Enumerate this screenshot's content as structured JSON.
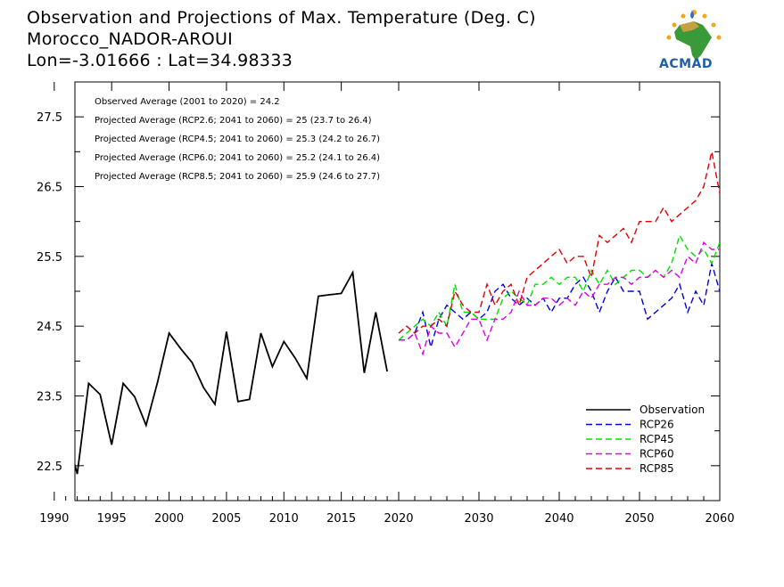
{
  "header": {
    "line1": "Observation and Projections of Max. Temperature (Deg. C)",
    "line2": "Morocco_NADOR-AROUI",
    "line3": "Lon=-3.01666 : Lat=34.98333"
  },
  "logo": {
    "text": "ACMAD",
    "icon": "africa-map-logo-icon"
  },
  "colors": {
    "Observation": "#000000",
    "RCP26": "#0000e0",
    "RCP45": "#00e000",
    "RCP60": "#e000e0",
    "RCP85": "#e00000"
  },
  "annotations": [
    "Observed Average (2001 to 2020) = 24.2",
    "Projected Average (RCP2.6; 2041 to 2060) = 25 (23.7 to 26.4)",
    "Projected Average (RCP4.5; 2041 to 2060) = 25.3 (24.2 to 26.7)",
    "Projected Average (RCP6.0; 2041 to 2060) = 25.2 (24.1 to 26.4)",
    "Projected Average (RCP8.5; 2041 to 2060) = 25.9 (24.6 to 27.7)"
  ],
  "chart_data": [
    {
      "type": "line",
      "title": "",
      "xlabel": "",
      "ylabel": "",
      "xlim": [
        1990,
        2020
      ],
      "ylim": [
        22,
        28
      ],
      "x_ticks": [
        1990,
        1995,
        2000,
        2005,
        2010,
        2015,
        2020
      ],
      "y_ticks": [
        22.5,
        23.5,
        24.5,
        25.5,
        26.5,
        27.5
      ],
      "legend": "none",
      "series": [
        {
          "name": "Observation",
          "x": [
            1989,
            1990,
            1991,
            1992,
            1993,
            1994,
            1995,
            1996,
            1997,
            1998,
            1999,
            2000,
            2001,
            2002,
            2003,
            2004,
            2005,
            2006,
            2007,
            2008,
            2009,
            2010,
            2011,
            2012,
            2013,
            2014,
            2015,
            2016,
            2017,
            2018,
            2019
          ],
          "values": [
            23.45,
            22.38,
            23.0,
            22.38,
            23.68,
            23.52,
            22.8,
            23.68,
            23.49,
            23.08,
            23.7,
            24.4,
            24.18,
            23.98,
            23.62,
            23.38,
            24.42,
            23.42,
            23.45,
            24.4,
            23.92,
            24.28,
            24.04,
            23.75,
            24.93,
            24.95,
            24.97,
            25.27,
            23.83,
            24.7,
            23.85
          ]
        }
      ]
    },
    {
      "type": "line",
      "title": "",
      "xlabel": "",
      "ylabel": "",
      "xlim": [
        2020,
        2060
      ],
      "ylim": [
        22,
        28
      ],
      "x_ticks": [
        2020,
        2030,
        2040,
        2050,
        2060
      ],
      "legend": "bottom-right",
      "series": [
        {
          "name": "Observation",
          "x": [],
          "values": []
        },
        {
          "name": "RCP26",
          "x": [
            2020,
            2021,
            2022,
            2023,
            2024,
            2025,
            2026,
            2027,
            2028,
            2029,
            2030,
            2031,
            2032,
            2033,
            2034,
            2035,
            2036,
            2037,
            2038,
            2039,
            2040,
            2041,
            2042,
            2043,
            2044,
            2045,
            2046,
            2047,
            2048,
            2049,
            2050,
            2051,
            2052,
            2053,
            2054,
            2055,
            2056,
            2057,
            2058,
            2059,
            2060
          ],
          "values": [
            24.3,
            24.3,
            24.4,
            24.7,
            24.2,
            24.6,
            24.8,
            24.7,
            24.6,
            24.7,
            24.6,
            24.7,
            25.0,
            25.1,
            24.9,
            24.8,
            24.9,
            24.8,
            24.9,
            24.7,
            24.9,
            24.9,
            25.1,
            25.2,
            25.0,
            24.7,
            25.0,
            25.2,
            25.0,
            25.0,
            25.0,
            24.6,
            24.7,
            24.8,
            24.9,
            25.1,
            24.7,
            25.0,
            24.8,
            25.4,
            25.0
          ]
        },
        {
          "name": "RCP45",
          "x": [
            2020,
            2021,
            2022,
            2023,
            2024,
            2025,
            2026,
            2027,
            2028,
            2029,
            2030,
            2031,
            2032,
            2033,
            2034,
            2035,
            2036,
            2037,
            2038,
            2039,
            2040,
            2041,
            2042,
            2043,
            2044,
            2045,
            2046,
            2047,
            2048,
            2049,
            2050,
            2051,
            2052,
            2053,
            2054,
            2055,
            2056,
            2057,
            2058,
            2059,
            2060
          ],
          "values": [
            24.3,
            24.4,
            24.5,
            24.6,
            24.5,
            24.7,
            24.5,
            25.1,
            24.7,
            24.7,
            24.6,
            24.6,
            24.6,
            24.9,
            25.0,
            24.9,
            24.8,
            25.1,
            25.1,
            25.2,
            25.1,
            25.2,
            25.2,
            25.0,
            25.3,
            25.1,
            25.3,
            25.1,
            25.2,
            25.3,
            25.3,
            25.2,
            25.3,
            25.2,
            25.4,
            25.8,
            25.6,
            25.5,
            25.6,
            25.4,
            25.7
          ]
        },
        {
          "name": "RCP60",
          "x": [
            2020,
            2021,
            2022,
            2023,
            2024,
            2025,
            2026,
            2027,
            2028,
            2029,
            2030,
            2031,
            2032,
            2033,
            2034,
            2035,
            2036,
            2037,
            2038,
            2039,
            2040,
            2041,
            2042,
            2043,
            2044,
            2045,
            2046,
            2047,
            2048,
            2049,
            2050,
            2051,
            2052,
            2053,
            2054,
            2055,
            2056,
            2057,
            2058,
            2059,
            2060
          ],
          "values": [
            24.3,
            24.3,
            24.4,
            24.1,
            24.5,
            24.4,
            24.4,
            24.2,
            24.4,
            24.6,
            24.6,
            24.3,
            24.6,
            24.6,
            24.7,
            25.0,
            24.8,
            24.8,
            24.9,
            24.9,
            24.8,
            24.9,
            24.8,
            25.0,
            24.9,
            25.1,
            25.1,
            25.2,
            25.2,
            25.1,
            25.2,
            25.2,
            25.3,
            25.2,
            25.3,
            25.2,
            25.5,
            25.4,
            25.7,
            25.6,
            25.6
          ]
        },
        {
          "name": "RCP85",
          "x": [
            2020,
            2021,
            2022,
            2023,
            2024,
            2025,
            2026,
            2027,
            2028,
            2029,
            2030,
            2031,
            2032,
            2033,
            2034,
            2035,
            2036,
            2037,
            2038,
            2039,
            2040,
            2041,
            2042,
            2043,
            2044,
            2045,
            2046,
            2047,
            2048,
            2049,
            2050,
            2051,
            2052,
            2053,
            2054,
            2055,
            2056,
            2057,
            2058,
            2059,
            2060
          ],
          "values": [
            24.4,
            24.5,
            24.4,
            24.5,
            24.5,
            24.6,
            24.5,
            25.0,
            24.8,
            24.7,
            24.7,
            25.1,
            24.8,
            25.0,
            25.1,
            24.8,
            25.2,
            25.3,
            25.4,
            25.5,
            25.6,
            25.4,
            25.5,
            25.5,
            25.2,
            25.8,
            25.7,
            25.8,
            25.9,
            25.7,
            26.0,
            26.0,
            26.0,
            26.2,
            26.0,
            26.1,
            26.2,
            26.3,
            26.5,
            27.0,
            26.4
          ]
        }
      ]
    }
  ]
}
